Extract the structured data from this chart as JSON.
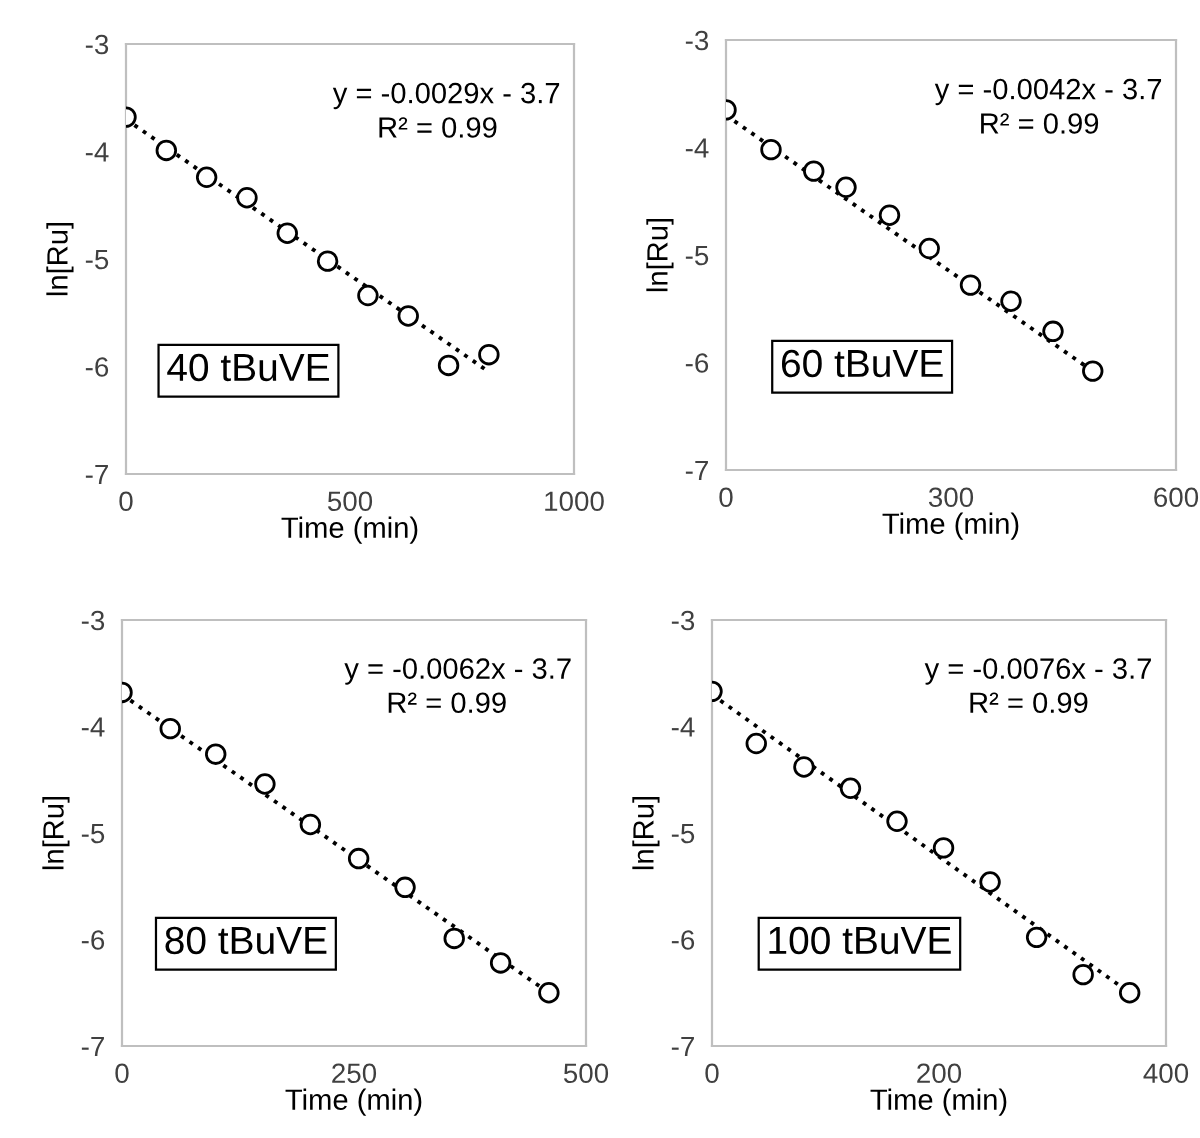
{
  "chart_data": [
    {
      "type": "scatter",
      "xlabel": "Time (min)",
      "ylabel": "ln[Ru]",
      "xlim": [
        0,
        1000
      ],
      "xticks": [
        0,
        500,
        1000
      ],
      "ylim": [
        -7,
        -3
      ],
      "yticks": [
        -7,
        -6,
        -5,
        -4,
        -3
      ],
      "grid": false,
      "legend": false,
      "marker": "circle",
      "annotations": [
        "y = -0.0029x - 3.7",
        "R² = 0.99",
        "40 tBuVE"
      ],
      "series": [
        {
          "color": "#000000",
          "x": [
            0,
            90,
            180,
            270,
            360,
            450,
            540,
            630,
            720,
            810
          ],
          "values": [
            -3.68,
            -3.99,
            -4.24,
            -4.43,
            -4.76,
            -5.02,
            -5.34,
            -5.53,
            -5.99,
            -5.89
          ]
        },
        {
          "type": "line",
          "line_style": "dotted",
          "marker": "none",
          "color": "#000000",
          "x": [
            0,
            810
          ],
          "values": [
            -3.7,
            -6.05
          ]
        }
      ]
    },
    {
      "type": "scatter",
      "xlabel": "Time (min)",
      "ylabel": "ln[Ru]",
      "xlim": [
        0,
        600
      ],
      "xticks": [
        0,
        300,
        600
      ],
      "ylim": [
        -7,
        -3
      ],
      "yticks": [
        -7,
        -6,
        -5,
        -4,
        -3
      ],
      "grid": false,
      "legend": false,
      "marker": "circle",
      "annotations": [
        "y = -0.0042x - 3.7",
        "R² = 0.99",
        "60 tBuVE"
      ],
      "series": [
        {
          "color": "#000000",
          "x": [
            0,
            60,
            117,
            160,
            218,
            271,
            326,
            380,
            436,
            489
          ],
          "values": [
            -3.65,
            -4.02,
            -4.22,
            -4.37,
            -4.63,
            -4.94,
            -5.28,
            -5.43,
            -5.71,
            -6.08
          ]
        },
        {
          "type": "line",
          "line_style": "dotted",
          "marker": "none",
          "color": "#000000",
          "x": [
            0,
            489
          ],
          "values": [
            -3.7,
            -6.08
          ]
        }
      ]
    },
    {
      "type": "scatter",
      "xlabel": "Time (min)",
      "ylabel": "ln[Ru]",
      "xlim": [
        0,
        500
      ],
      "xticks": [
        0,
        250,
        500
      ],
      "ylim": [
        -7,
        -3
      ],
      "yticks": [
        -7,
        -6,
        -5,
        -4,
        -3
      ],
      "grid": false,
      "legend": false,
      "marker": "circle",
      "annotations": [
        "y = -0.0062x - 3.7",
        "R² = 0.99",
        "80 tBuVE"
      ],
      "series": [
        {
          "color": "#000000",
          "x": [
            0,
            52,
            101,
            154,
            203,
            255,
            305,
            358,
            408,
            460
          ],
          "values": [
            -3.68,
            -4.02,
            -4.26,
            -4.54,
            -4.92,
            -5.24,
            -5.51,
            -5.99,
            -6.22,
            -6.5
          ]
        },
        {
          "type": "line",
          "line_style": "dotted",
          "marker": "none",
          "color": "#000000",
          "x": [
            0,
            460
          ],
          "values": [
            -3.7,
            -6.5
          ]
        }
      ]
    },
    {
      "type": "scatter",
      "xlabel": "Time (min)",
      "ylabel": "ln[Ru]",
      "xlim": [
        0,
        400
      ],
      "xticks": [
        0,
        200,
        400
      ],
      "ylim": [
        -7,
        -3
      ],
      "yticks": [
        -7,
        -6,
        -5,
        -4,
        -3
      ],
      "grid": false,
      "legend": false,
      "marker": "circle",
      "annotations": [
        "y = -0.0076x - 3.7",
        "R² = 0.99",
        "100 tBuVE"
      ],
      "series": [
        {
          "color": "#000000",
          "x": [
            0,
            39,
            81,
            122,
            163,
            204,
            245,
            286,
            327,
            368
          ],
          "values": [
            -3.67,
            -4.16,
            -4.38,
            -4.58,
            -4.89,
            -5.14,
            -5.46,
            -5.98,
            -6.33,
            -6.5
          ]
        },
        {
          "type": "line",
          "line_style": "dotted",
          "marker": "none",
          "color": "#000000",
          "x": [
            0,
            368
          ],
          "values": [
            -3.7,
            -6.5
          ]
        }
      ]
    }
  ]
}
